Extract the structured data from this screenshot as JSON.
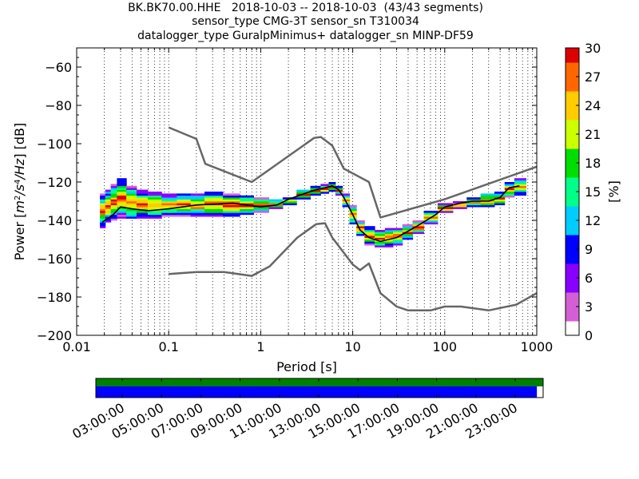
{
  "title_lines": [
    "BK.BK70.00.HHE   2018-10-03 -- 2018-10-03  (43/43 segments)",
    "sensor_type CMG-3T sensor_sn T310034",
    "datalogger_type GuralpMinimus+ datalogger_sn MINP-DF59"
  ],
  "chart_data": [
    {
      "type": "heatmap",
      "title": "BK.BK70.00.HHE   2018-10-03 -- 2018-10-03  (43/43 segments)",
      "xlabel": "Period [s]",
      "ylabel": "Power [m²/s⁴/Hz] [dB]",
      "ylabel_parts": [
        "Power ",
        "m",
        "2",
        "/s",
        "4",
        "/Hz",
        " [dB]"
      ],
      "x_scale": "log",
      "xlim": [
        0.01,
        1000
      ],
      "ylim": [
        -200,
        -50
      ],
      "x_ticks": [
        0.01,
        0.1,
        1,
        10,
        100,
        1000
      ],
      "x_tick_labels": [
        "0.01",
        "0.1",
        "1",
        "10",
        "100",
        "1000"
      ],
      "y_ticks": [
        -200,
        -180,
        -160,
        -140,
        -120,
        -100,
        -80,
        -60
      ],
      "y_tick_labels": [
        "−200",
        "−180",
        "−160",
        "−140",
        "−120",
        "−100",
        "−80",
        "−60"
      ],
      "grid": "vertical dotted at log subdivisions",
      "colorbar": {
        "label": "[%]",
        "range": [
          0,
          30
        ],
        "ticks": [
          0,
          3,
          6,
          9,
          12,
          15,
          18,
          21,
          24,
          27,
          30
        ],
        "tick_labels": [
          "0",
          "3",
          "6",
          "9",
          "12",
          "15",
          "18",
          "21",
          "24",
          "27",
          "30"
        ],
        "colors": [
          "#ffffff",
          "#d45fd5",
          "#8800ff",
          "#0000ff",
          "#00ccff",
          "#00ff88",
          "#00dd00",
          "#ccff00",
          "#ffcc00",
          "#ff6600",
          "#dd0000"
        ]
      },
      "psd_band": [
        {
          "x": 0.019,
          "lo": -144,
          "hi": -126
        },
        {
          "x": 0.022,
          "lo": -141,
          "hi": -124
        },
        {
          "x": 0.025,
          "lo": -140,
          "hi": -121
        },
        {
          "x": 0.03,
          "lo": -139,
          "hi": -118
        },
        {
          "x": 0.04,
          "lo": -139,
          "hi": -122
        },
        {
          "x": 0.05,
          "lo": -139,
          "hi": -124
        },
        {
          "x": 0.07,
          "lo": -139,
          "hi": -125
        },
        {
          "x": 0.1,
          "lo": -138,
          "hi": -126
        },
        {
          "x": 0.15,
          "lo": -138,
          "hi": -126
        },
        {
          "x": 0.2,
          "lo": -138,
          "hi": -126
        },
        {
          "x": 0.3,
          "lo": -138,
          "hi": -125
        },
        {
          "x": 0.5,
          "lo": -138,
          "hi": -126
        },
        {
          "x": 0.7,
          "lo": -137,
          "hi": -127
        },
        {
          "x": 1.0,
          "lo": -136,
          "hi": -128
        },
        {
          "x": 1.5,
          "lo": -134,
          "hi": -129
        },
        {
          "x": 2.0,
          "lo": -132,
          "hi": -128
        },
        {
          "x": 3.0,
          "lo": -129,
          "hi": -124
        },
        {
          "x": 4.0,
          "lo": -127,
          "hi": -122
        },
        {
          "x": 5.0,
          "lo": -126,
          "hi": -121
        },
        {
          "x": 6.0,
          "lo": -125,
          "hi": -120
        },
        {
          "x": 7.0,
          "lo": -127,
          "hi": -122
        },
        {
          "x": 8.5,
          "lo": -133,
          "hi": -126
        },
        {
          "x": 10.0,
          "lo": -142,
          "hi": -132
        },
        {
          "x": 12.0,
          "lo": -148,
          "hi": -140
        },
        {
          "x": 15.0,
          "lo": -153,
          "hi": -143
        },
        {
          "x": 20.0,
          "lo": -154,
          "hi": -145
        },
        {
          "x": 25.0,
          "lo": -154,
          "hi": -144
        },
        {
          "x": 30.0,
          "lo": -153,
          "hi": -144
        },
        {
          "x": 40.0,
          "lo": -150,
          "hi": -142
        },
        {
          "x": 50.0,
          "lo": -147,
          "hi": -140
        },
        {
          "x": 70.0,
          "lo": -142,
          "hi": -135
        },
        {
          "x": 100.0,
          "lo": -136,
          "hi": -131
        },
        {
          "x": 150.0,
          "lo": -134,
          "hi": -130
        },
        {
          "x": 200.0,
          "lo": -133,
          "hi": -128
        },
        {
          "x": 300.0,
          "lo": -133,
          "hi": -126
        },
        {
          "x": 400.0,
          "lo": -132,
          "hi": -125
        },
        {
          "x": 500.0,
          "lo": -128,
          "hi": -120
        },
        {
          "x": 650.0,
          "lo": -127,
          "hi": -118
        }
      ],
      "series": [
        {
          "style": "black",
          "points": [
            [
              0.019,
              -141
            ],
            [
              0.025,
              -137
            ],
            [
              0.03,
              -133
            ],
            [
              0.04,
              -134
            ],
            [
              0.06,
              -135
            ],
            [
              0.1,
              -134
            ],
            [
              0.2,
              -132
            ],
            [
              0.5,
              -131
            ],
            [
              1,
              -133
            ],
            [
              1.5,
              -132
            ],
            [
              2,
              -129
            ],
            [
              3,
              -126
            ],
            [
              4,
              -124
            ],
            [
              5,
              -123
            ],
            [
              6,
              -122
            ],
            [
              7,
              -124
            ],
            [
              8,
              -128
            ],
            [
              10,
              -137
            ],
            [
              12,
              -145
            ],
            [
              15,
              -149
            ],
            [
              20,
              -151
            ],
            [
              30,
              -149
            ],
            [
              50,
              -143
            ],
            [
              80,
              -137
            ],
            [
              100,
              -133
            ],
            [
              150,
              -131
            ],
            [
              200,
              -130
            ],
            [
              300,
              -130
            ],
            [
              400,
              -128
            ],
            [
              500,
              -123
            ],
            [
              650,
              -122
            ]
          ]
        },
        {
          "style": "gray-upper",
          "points": [
            [
              0.1,
              -91.5
            ],
            [
              0.2,
              -97.5
            ],
            [
              0.25,
              -110.5
            ],
            [
              0.8,
              -120
            ],
            [
              3.8,
              -97
            ],
            [
              4.5,
              -96.5
            ],
            [
              6,
              -101
            ],
            [
              8,
              -113
            ],
            [
              15,
              -120
            ],
            [
              20,
              -138.5
            ],
            [
              100,
              -129
            ],
            [
              1000,
              -112
            ]
          ]
        },
        {
          "style": "gray-lower",
          "points": [
            [
              0.1,
              -168
            ],
            [
              0.2,
              -167
            ],
            [
              0.4,
              -167
            ],
            [
              0.8,
              -169
            ],
            [
              1.25,
              -164
            ],
            [
              2.5,
              -149
            ],
            [
              4,
              -142
            ],
            [
              5,
              -141.5
            ],
            [
              6,
              -149
            ],
            [
              10,
              -163
            ],
            [
              12,
              -166
            ],
            [
              15,
              -162.5
            ],
            [
              20,
              -178
            ],
            [
              30,
              -185
            ],
            [
              40,
              -187
            ],
            [
              70,
              -187
            ],
            [
              100,
              -185
            ],
            [
              150,
              -185
            ],
            [
              300,
              -187
            ],
            [
              600,
              -184
            ],
            [
              1000,
              -178
            ]
          ]
        }
      ]
    },
    {
      "type": "bar",
      "title": "",
      "x_tick_labels": [
        "03:00:00",
        "05:00:00",
        "07:00:00",
        "09:00:00",
        "11:00:00",
        "13:00:00",
        "15:00:00",
        "17:00:00",
        "19:00:00",
        "21:00:00",
        "23:00:00"
      ],
      "series": [
        {
          "color": "#008000",
          "coverage": [
            0.0,
            1.0
          ]
        },
        {
          "color": "#0000ff",
          "coverage": [
            0.0,
            0.986
          ]
        }
      ]
    }
  ]
}
